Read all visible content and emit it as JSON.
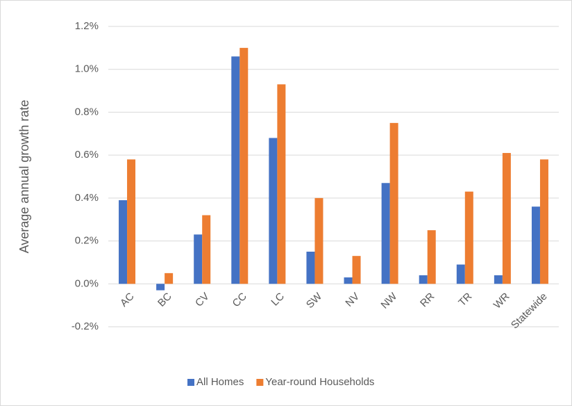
{
  "chart_data": {
    "type": "bar",
    "y_label": "Average annual growth rate",
    "categories": [
      "AC",
      "BC",
      "CV",
      "CC",
      "LC",
      "SW",
      "NV",
      "NW",
      "RR",
      "TR",
      "WR",
      "Statewide"
    ],
    "series": [
      {
        "name": "All Homes",
        "color": "#4472c4",
        "values": [
          0.39,
          -0.03,
          0.23,
          1.06,
          0.68,
          0.15,
          0.03,
          0.47,
          0.04,
          0.09,
          0.04,
          0.36
        ]
      },
      {
        "name": "Year-round Households",
        "color": "#ed7d31",
        "values": [
          0.58,
          0.05,
          0.32,
          1.1,
          0.93,
          0.4,
          0.13,
          0.75,
          0.25,
          0.43,
          0.61,
          0.58
        ]
      }
    ],
    "ylim": [
      -0.2,
      1.2
    ],
    "yticks": [
      {
        "value": -0.2,
        "label": "-0.2%"
      },
      {
        "value": 0,
        "label": "0.0%"
      },
      {
        "value": 0.2,
        "label": "0.2%"
      },
      {
        "value": 0.4,
        "label": "0.4%"
      },
      {
        "value": 0.6,
        "label": "0.6%"
      },
      {
        "value": 0.8,
        "label": "0.8%"
      },
      {
        "value": 1.0,
        "label": "1.0%"
      },
      {
        "value": 1.2,
        "label": "1.2%"
      }
    ],
    "grid": true,
    "legend": "bottom"
  }
}
